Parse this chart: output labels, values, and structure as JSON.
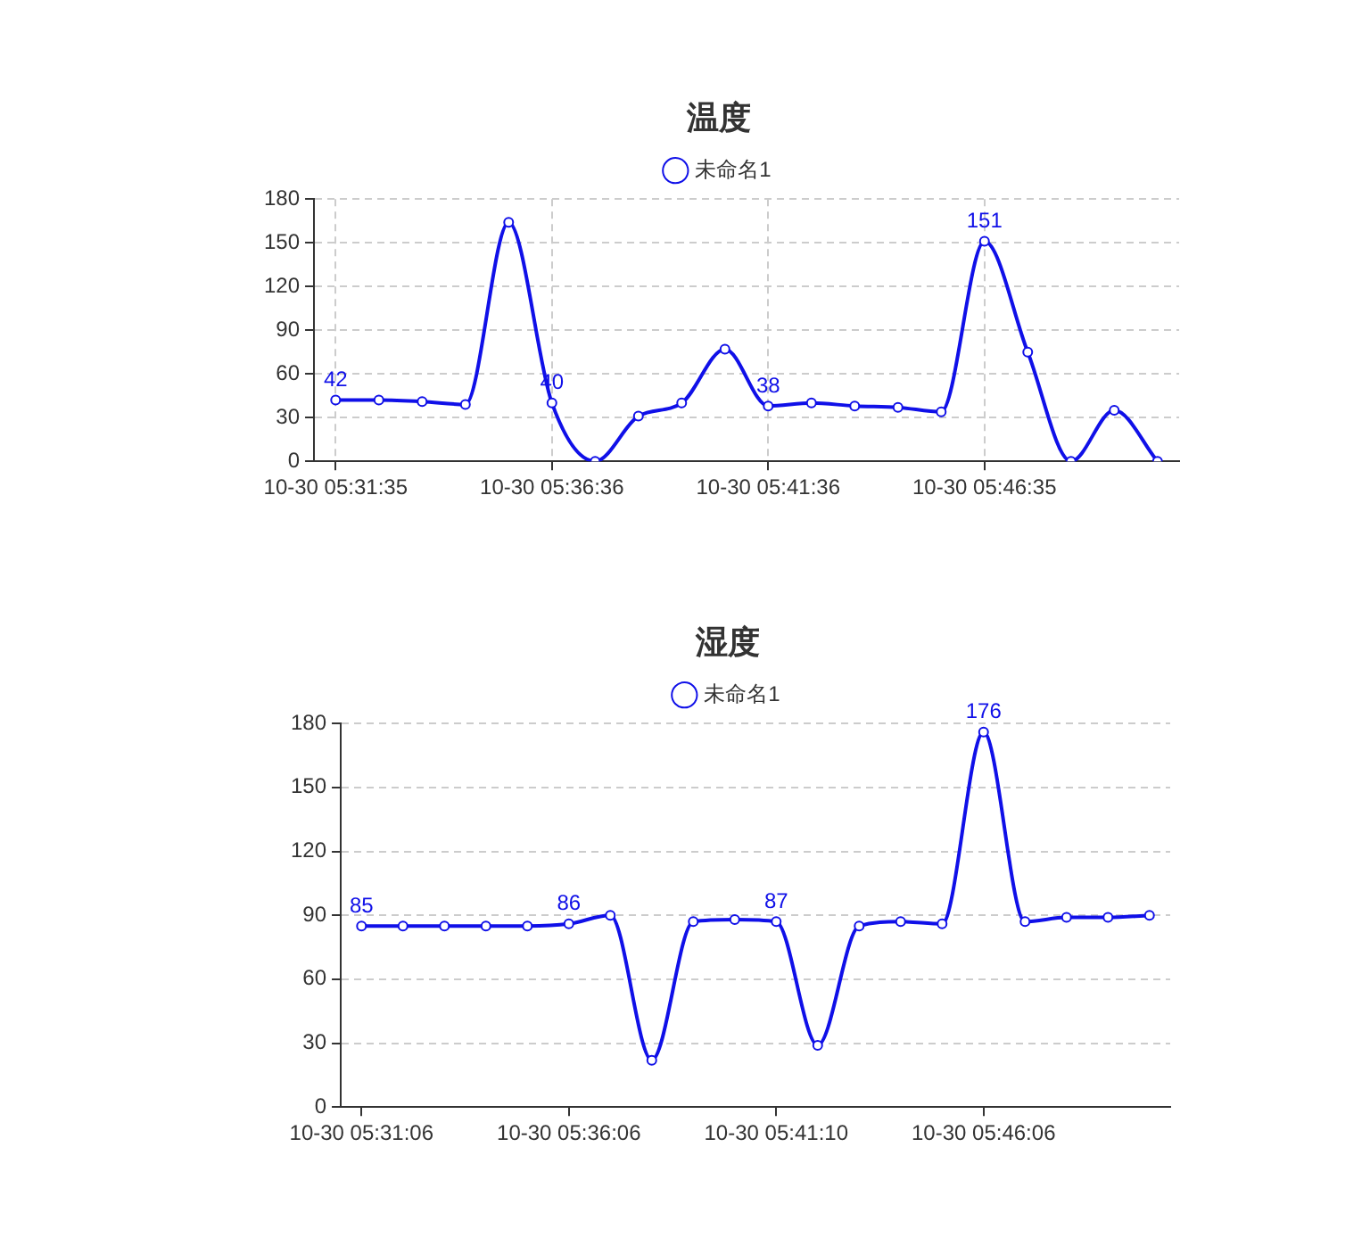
{
  "chart_data": [
    {
      "type": "line",
      "title": "温度",
      "categories": [
        "10-30 05:31:35",
        null,
        null,
        null,
        null,
        "10-30 05:36:36",
        null,
        null,
        null,
        null,
        "10-30 05:41:36",
        null,
        null,
        null,
        null,
        "10-30 05:46:35",
        null,
        null,
        null,
        null
      ],
      "series": [
        {
          "name": "未命名1",
          "color": "#1010e8",
          "values": [
            42,
            42,
            41,
            39,
            164,
            40,
            0,
            31,
            40,
            77,
            38,
            40,
            38,
            37,
            34,
            151,
            75,
            0,
            35,
            0
          ],
          "value_labels": [
            "42",
            null,
            null,
            null,
            null,
            "40",
            null,
            null,
            null,
            null,
            "38",
            null,
            null,
            null,
            null,
            "151",
            null,
            null,
            null,
            null
          ]
        }
      ],
      "ylim": [
        0,
        180
      ],
      "yticks": [
        0,
        30,
        60,
        90,
        120,
        150,
        180
      ],
      "grid": true,
      "legend": "top",
      "marker": "circle"
    },
    {
      "type": "line",
      "title": "湿度",
      "categories": [
        "10-30 05:31:06",
        null,
        null,
        null,
        null,
        "10-30 05:36:06",
        null,
        null,
        null,
        null,
        "10-30 05:41:10",
        null,
        null,
        null,
        null,
        "10-30 05:46:06",
        null,
        null,
        null,
        null
      ],
      "series": [
        {
          "name": "未命名1",
          "color": "#1010e8",
          "values": [
            85,
            85,
            85,
            85,
            85,
            86,
            90,
            22,
            87,
            88,
            87,
            29,
            85,
            87,
            86,
            176,
            87,
            89,
            89,
            90
          ],
          "value_labels": [
            "85",
            null,
            null,
            null,
            null,
            "86",
            null,
            null,
            null,
            null,
            "87",
            null,
            null,
            null,
            null,
            "176",
            null,
            null,
            null,
            null
          ]
        }
      ],
      "ylim": [
        0,
        180
      ],
      "yticks": [
        0,
        30,
        60,
        90,
        120,
        150,
        180
      ],
      "grid": "y",
      "legend": "top",
      "marker": "circle"
    }
  ]
}
